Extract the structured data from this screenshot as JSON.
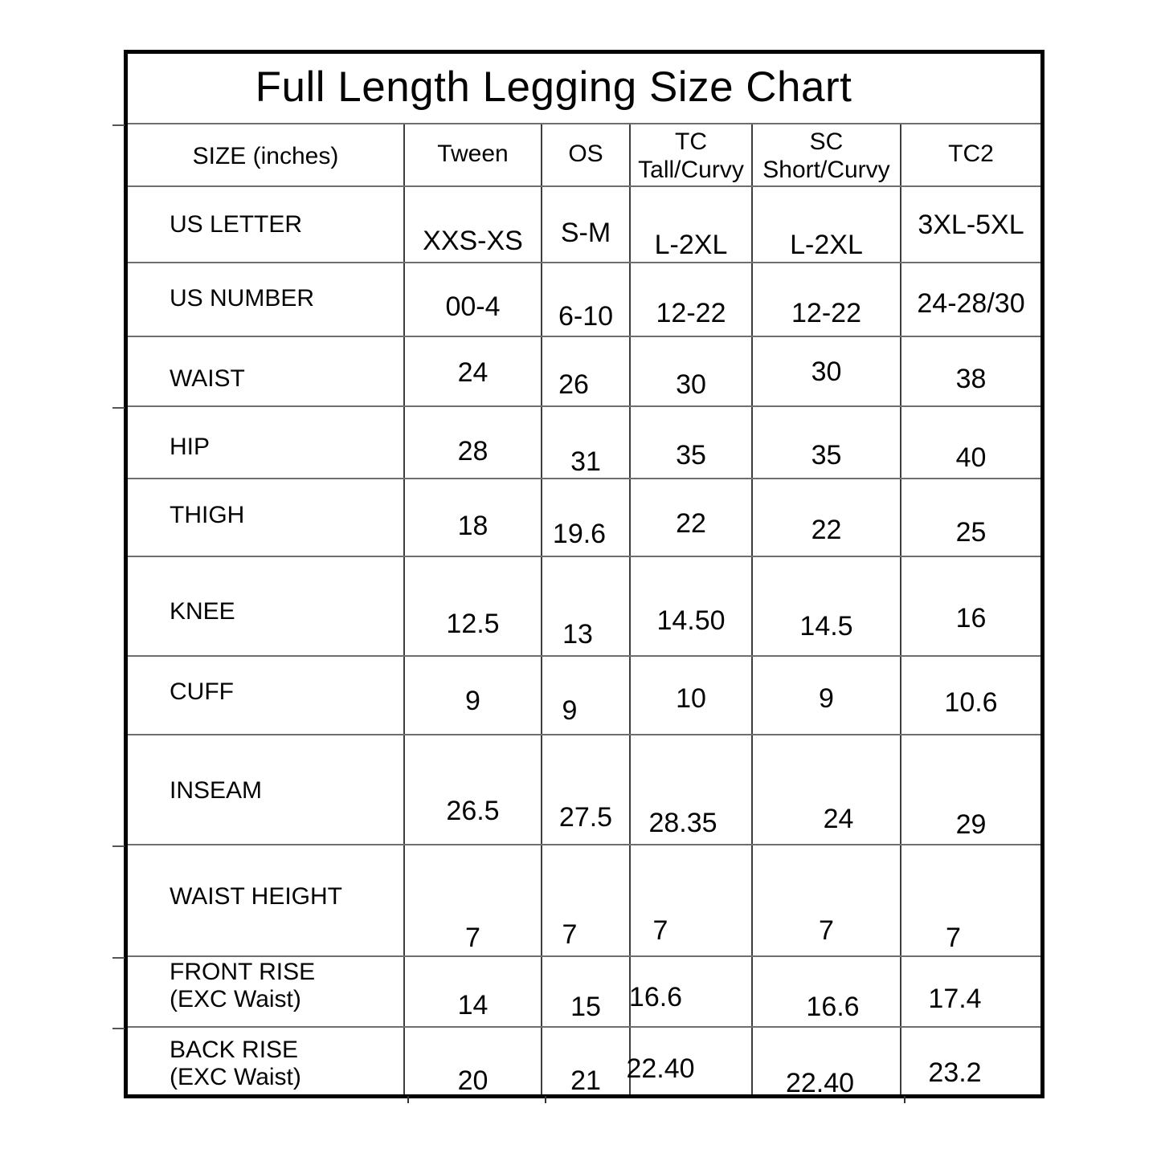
{
  "title": "Full Length Legging Size Chart",
  "table": {
    "size_unit": "inches",
    "columns": [
      {
        "label": "SIZE (inches)",
        "sublabel": ""
      },
      {
        "label": "Tween",
        "sublabel": ""
      },
      {
        "label": "OS",
        "sublabel": ""
      },
      {
        "label": "TC",
        "sublabel": "Tall/Curvy"
      },
      {
        "label": "SC",
        "sublabel": "Short/Curvy"
      },
      {
        "label": "TC2",
        "sublabel": ""
      }
    ],
    "rows": [
      {
        "label": "US LETTER",
        "sublabel": "",
        "values": [
          "XXS-XS",
          "S-M",
          "L-2XL",
          "L-2XL",
          "3XL-5XL"
        ]
      },
      {
        "label": "US NUMBER",
        "sublabel": "",
        "values": [
          "00-4",
          "6-10",
          "12-22",
          "12-22",
          "24-28/30"
        ]
      },
      {
        "label": "WAIST",
        "sublabel": "",
        "values": [
          "24",
          "26",
          "30",
          "30",
          "38"
        ]
      },
      {
        "label": "HIP",
        "sublabel": "",
        "values": [
          "28",
          "31",
          "35",
          "35",
          "40"
        ]
      },
      {
        "label": "THIGH",
        "sublabel": "",
        "values": [
          "18",
          "19.6",
          "22",
          "22",
          "25"
        ]
      },
      {
        "label": "KNEE",
        "sublabel": "",
        "values": [
          "12.5",
          "13",
          "14.50",
          "14.5",
          "16"
        ]
      },
      {
        "label": "CUFF",
        "sublabel": "",
        "values": [
          "9",
          "9",
          "10",
          "9",
          "10.6"
        ]
      },
      {
        "label": "INSEAM",
        "sublabel": "",
        "values": [
          "26.5",
          "27.5",
          "28.35",
          "24",
          "29"
        ]
      },
      {
        "label": "WAIST HEIGHT",
        "sublabel": "",
        "values": [
          "7",
          "7",
          "7",
          "7",
          "7"
        ]
      },
      {
        "label": "FRONT RISE",
        "sublabel": "(EXC Waist)",
        "values": [
          "14",
          "15",
          "16.6",
          "16.6",
          "17.4"
        ]
      },
      {
        "label": "BACK RISE",
        "sublabel": "(EXC Waist)",
        "values": [
          "20",
          "21",
          "22.40",
          "22.40",
          "23.2"
        ]
      }
    ]
  }
}
